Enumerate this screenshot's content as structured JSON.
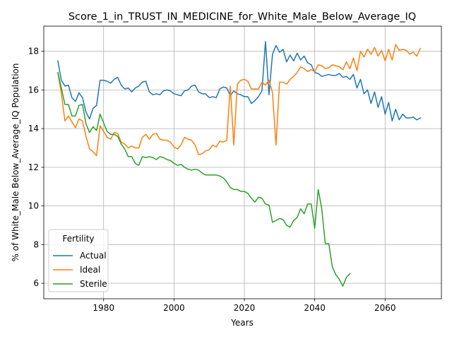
{
  "chart_data": {
    "type": "line",
    "title": "Score_1_in_TRUST_IN_MEDICINE_for_White_Male_Below_Average_IQ",
    "xlabel": "Years",
    "ylabel": "% of White_Male Below_Average_IQ Population",
    "xlim": [
      1963,
      2076
    ],
    "ylim": [
      5.2,
      19.3
    ],
    "xticks": [
      1980,
      2000,
      2020,
      2040,
      2060
    ],
    "yticks": [
      6,
      8,
      10,
      12,
      14,
      16,
      18
    ],
    "grid": true,
    "legend": {
      "title": "Fertility",
      "position": "bottom-left"
    },
    "series": [
      {
        "name": "Actual",
        "color": "#1f77b4",
        "x": [
          1967,
          1968,
          1969,
          1970,
          1971,
          1972,
          1973,
          1974,
          1975,
          1976,
          1977,
          1978,
          1979,
          1980,
          1981,
          1982,
          1983,
          1984,
          1985,
          1986,
          1987,
          1988,
          1989,
          1990,
          1991,
          1992,
          1993,
          1994,
          1995,
          1996,
          1997,
          1998,
          1999,
          2000,
          2001,
          2002,
          2003,
          2004,
          2005,
          2006,
          2007,
          2008,
          2009,
          2010,
          2011,
          2012,
          2013,
          2014,
          2015,
          2016,
          2017,
          2018,
          2019,
          2020,
          2021,
          2022,
          2023,
          2024,
          2025,
          2026,
          2027,
          2028,
          2029,
          2030,
          2031,
          2032,
          2033,
          2034,
          2035,
          2036,
          2037,
          2038,
          2039,
          2040,
          2041,
          2042,
          2043,
          2044,
          2045,
          2046,
          2047,
          2048,
          2049,
          2050,
          2051,
          2052,
          2053,
          2054,
          2055,
          2056,
          2057,
          2058,
          2059,
          2060,
          2061,
          2062,
          2063,
          2064,
          2065,
          2066,
          2067,
          2068,
          2069,
          2070
        ],
        "y": [
          17.5,
          16.5,
          16.2,
          16.25,
          15.6,
          15.4,
          15.85,
          15.6,
          14.85,
          14.5,
          15.05,
          15.2,
          16.5,
          16.5,
          16.45,
          16.35,
          16.55,
          16.65,
          16.25,
          16.05,
          16.1,
          15.9,
          16.1,
          16.2,
          16.4,
          16.45,
          15.9,
          15.75,
          15.8,
          15.75,
          15.95,
          16.0,
          15.95,
          15.8,
          15.75,
          15.7,
          15.95,
          16.0,
          16.2,
          16.25,
          15.9,
          15.8,
          15.8,
          15.6,
          15.65,
          15.6,
          16.05,
          16.15,
          16.1,
          15.7,
          15.95,
          15.8,
          15.75,
          15.65,
          15.65,
          15.3,
          15.45,
          15.65,
          15.95,
          18.5,
          15.75,
          17.85,
          18.3,
          17.95,
          18.1,
          17.45,
          17.8,
          17.5,
          17.9,
          17.55,
          17.75,
          17.4,
          17.3,
          16.9,
          16.85,
          16.7,
          16.75,
          16.8,
          16.75,
          16.75,
          16.85,
          16.65,
          16.7,
          16.55,
          16.8,
          16.1,
          16.55,
          15.8,
          16.0,
          15.3,
          15.9,
          15.1,
          15.65,
          14.75,
          15.35,
          14.4,
          15.0,
          14.45,
          14.75,
          14.55,
          14.55,
          14.6,
          14.45,
          14.55
        ]
      },
      {
        "name": "Ideal",
        "color": "#ff7f0e",
        "x": [
          1967,
          1968,
          1969,
          1970,
          1971,
          1972,
          1973,
          1974,
          1975,
          1976,
          1977,
          1978,
          1979,
          1980,
          1981,
          1982,
          1983,
          1984,
          1985,
          1986,
          1987,
          1988,
          1989,
          1990,
          1991,
          1992,
          1993,
          1994,
          1995,
          1996,
          1997,
          1998,
          1999,
          2000,
          2001,
          2002,
          2003,
          2004,
          2005,
          2006,
          2007,
          2008,
          2009,
          2010,
          2011,
          2012,
          2013,
          2014,
          2015,
          2016,
          2017,
          2018,
          2019,
          2020,
          2021,
          2022,
          2023,
          2024,
          2025,
          2026,
          2027,
          2028,
          2029,
          2030,
          2031,
          2032,
          2033,
          2034,
          2035,
          2036,
          2037,
          2038,
          2039,
          2040,
          2041,
          2042,
          2043,
          2044,
          2045,
          2046,
          2047,
          2048,
          2049,
          2050,
          2051,
          2052,
          2053,
          2054,
          2055,
          2056,
          2057,
          2058,
          2059,
          2060,
          2061,
          2062,
          2063,
          2064,
          2065,
          2066,
          2067,
          2068,
          2069,
          2070
        ],
        "y": [
          16.9,
          15.8,
          14.4,
          14.65,
          14.35,
          14.05,
          14.5,
          14.4,
          13.6,
          12.95,
          12.8,
          12.6,
          14.15,
          13.85,
          13.55,
          13.45,
          13.8,
          13.75,
          13.3,
          13.2,
          13.0,
          13.1,
          13.0,
          13.0,
          13.55,
          13.7,
          13.45,
          13.7,
          13.75,
          13.45,
          13.4,
          13.4,
          13.3,
          13.05,
          12.95,
          13.15,
          13.55,
          13.45,
          13.4,
          13.15,
          12.65,
          12.7,
          12.85,
          12.9,
          13.15,
          13.05,
          13.35,
          13.3,
          13.4,
          16.2,
          13.15,
          16.3,
          16.5,
          16.55,
          16.45,
          16.05,
          16.05,
          16.05,
          16.4,
          16.25,
          16.5,
          15.85,
          13.15,
          16.4,
          16.4,
          16.3,
          16.55,
          16.7,
          16.9,
          17.2,
          17.1,
          16.95,
          17.05,
          16.95,
          17.3,
          17.25,
          17.1,
          17.15,
          17.3,
          17.25,
          17.2,
          17.05,
          17.45,
          17.1,
          17.65,
          17.0,
          18.0,
          17.7,
          18.1,
          17.85,
          18.2,
          17.75,
          18.05,
          17.5,
          18.1,
          17.55,
          18.35,
          18.05,
          18.1,
          18.05,
          17.85,
          17.95,
          17.75,
          18.15
        ]
      },
      {
        "name": "Sterile",
        "color": "#2ca02c",
        "x": [
          1967,
          1968,
          1969,
          1970,
          1971,
          1972,
          1973,
          1974,
          1975,
          1976,
          1977,
          1978,
          1979,
          1980,
          1981,
          1982,
          1983,
          1984,
          1985,
          1986,
          1987,
          1988,
          1989,
          1990,
          1991,
          1992,
          1993,
          1994,
          1995,
          1996,
          1997,
          1998,
          1999,
          2000,
          2001,
          2002,
          2003,
          2004,
          2005,
          2006,
          2007,
          2008,
          2009,
          2010,
          2011,
          2012,
          2013,
          2014,
          2015,
          2016,
          2017,
          2018,
          2019,
          2020,
          2021,
          2022,
          2023,
          2024,
          2025,
          2026,
          2027,
          2028,
          2029,
          2030,
          2031,
          2032,
          2033,
          2034,
          2035,
          2036,
          2037,
          2038,
          2039,
          2040,
          2041,
          2042,
          2043,
          2044,
          2045,
          2046,
          2047,
          2048,
          2049,
          2050
        ],
        "y": [
          16.9,
          16.1,
          15.25,
          15.25,
          14.65,
          14.65,
          15.2,
          15.25,
          14.25,
          13.8,
          14.1,
          13.9,
          14.75,
          14.3,
          13.85,
          13.7,
          13.7,
          13.6,
          13.2,
          12.95,
          12.55,
          12.55,
          12.2,
          12.1,
          12.55,
          12.5,
          12.55,
          12.5,
          12.4,
          12.55,
          12.5,
          12.4,
          12.35,
          12.2,
          12.1,
          12.15,
          12.0,
          11.9,
          11.85,
          11.9,
          11.85,
          11.7,
          11.6,
          11.6,
          11.6,
          11.6,
          11.55,
          11.45,
          11.25,
          10.95,
          10.85,
          10.85,
          10.75,
          10.75,
          10.65,
          10.4,
          10.2,
          10.45,
          10.4,
          10.1,
          10.05,
          9.15,
          9.25,
          9.35,
          9.3,
          9.0,
          8.9,
          9.25,
          9.4,
          9.85,
          9.6,
          10.1,
          10.1,
          8.85,
          10.85,
          9.85,
          8.05,
          8.05,
          6.85,
          6.45,
          6.2,
          5.85,
          6.3,
          6.5
        ]
      }
    ]
  }
}
